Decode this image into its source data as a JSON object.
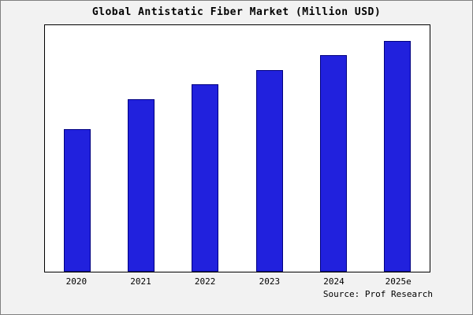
{
  "title": "Global Antistatic Fiber Market (Million USD)",
  "source": "Source: Prof Research",
  "colors": {
    "bar_fill": "#2121dd",
    "bar_border": "#000080",
    "background": "#f2f2f2",
    "plot_background": "#ffffff"
  },
  "chart_data": {
    "type": "bar",
    "title": "Global Antistatic Fiber Market (Million USD)",
    "categories": [
      "2020",
      "2021",
      "2022",
      "2023",
      "2024",
      "2025e"
    ],
    "values": [
      182,
      220,
      240,
      258,
      277,
      295
    ],
    "xlabel": "",
    "ylabel": "",
    "ylim": [
      0,
      315
    ],
    "grid": false,
    "legend": false,
    "y_axis_shown": false,
    "annotations": [
      "Source: Prof Research"
    ]
  }
}
